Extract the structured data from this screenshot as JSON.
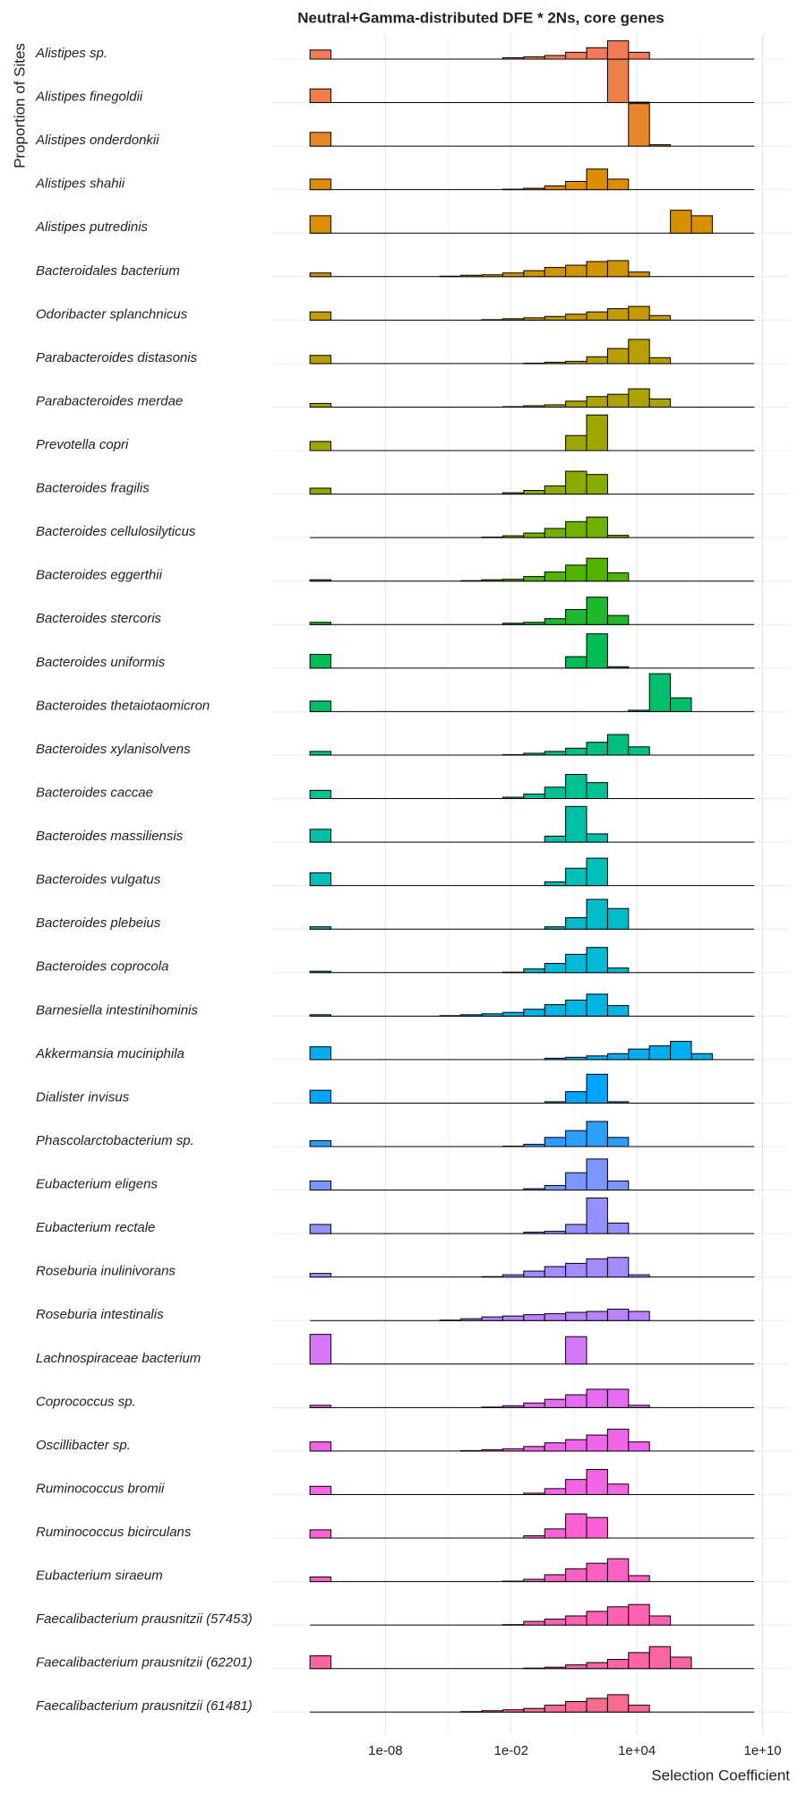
{
  "chart_data": {
    "type": "ridge_histogram",
    "title": "Neutral+Gamma-distributed DFE * 2Ns, core genes",
    "x_label": "Selection Coefficient",
    "y_label": "Proportion of Sites",
    "xlim": [
      -13.4,
      11.3
    ],
    "xticks": [
      {
        "value": -8,
        "label": "1e-08"
      },
      {
        "value": -2,
        "label": "1e-02"
      },
      {
        "value": 4,
        "label": "1e+04"
      },
      {
        "value": 10,
        "label": "1e+10"
      }
    ],
    "x_minor_grid": [
      -5,
      1,
      7
    ],
    "grid": true,
    "row_ylim": [
      0,
      1
    ],
    "neutral_bin": [
      -11.6,
      -10.6
    ],
    "bins": [
      -5.4,
      -4.4,
      -3.4,
      -2.4,
      -1.4,
      -0.4,
      0.6,
      1.6,
      2.6,
      3.6,
      4.6,
      5.6,
      6.6,
      7.6,
      8.6,
      9.6
    ],
    "series": [
      {
        "name": "Alistipes sp.",
        "color": "#F37B59",
        "neutral": 0.2,
        "values": [
          0,
          0,
          0,
          0.03,
          0.05,
          0.08,
          0.15,
          0.25,
          0.4,
          0.15,
          0,
          0,
          0,
          0,
          0
        ]
      },
      {
        "name": "Alistipes finegoldii",
        "color": "#EE7F4A",
        "neutral": 0.3,
        "values": [
          0,
          0,
          0,
          0,
          0,
          0,
          0,
          0,
          0.95,
          0.01,
          0,
          0,
          0,
          0,
          0
        ]
      },
      {
        "name": "Alistipes onderdonkii",
        "color": "#E8862C",
        "neutral": 0.3,
        "values": [
          0,
          0,
          0,
          0,
          0,
          0,
          0,
          0,
          0,
          0.93,
          0.03,
          0,
          0,
          0,
          0
        ]
      },
      {
        "name": "Alistipes shahii",
        "color": "#DE8C00",
        "neutral": 0.23,
        "values": [
          0,
          0,
          0,
          0.01,
          0.03,
          0.08,
          0.18,
          0.45,
          0.23,
          0,
          0,
          0,
          0,
          0,
          0
        ]
      },
      {
        "name": "Alistipes putredinis",
        "color": "#D89000",
        "neutral": 0.38,
        "values": [
          0,
          0,
          0,
          0,
          0,
          0,
          0,
          0,
          0,
          0,
          0,
          0.5,
          0.38,
          0,
          0
        ]
      },
      {
        "name": "Bacteroidales bacterium",
        "color": "#CF9400",
        "neutral": 0.08,
        "values": [
          0.01,
          0.03,
          0.04,
          0.08,
          0.13,
          0.2,
          0.25,
          0.33,
          0.35,
          0.1,
          0,
          0,
          0,
          0,
          0
        ]
      },
      {
        "name": "Odoribacter splanchnicus",
        "color": "#C49A00",
        "neutral": 0.18,
        "values": [
          0,
          0,
          0.01,
          0.03,
          0.05,
          0.08,
          0.13,
          0.18,
          0.25,
          0.3,
          0.1,
          0,
          0,
          0,
          0
        ]
      },
      {
        "name": "Parabacteroides distasonis",
        "color": "#B79F00",
        "neutral": 0.18,
        "values": [
          0,
          0,
          0,
          0,
          0.01,
          0.03,
          0.05,
          0.15,
          0.33,
          0.53,
          0.13,
          0,
          0,
          0,
          0
        ]
      },
      {
        "name": "Parabacteroides merdae",
        "color": "#ABA300",
        "neutral": 0.08,
        "values": [
          0,
          0,
          0,
          0.01,
          0.03,
          0.05,
          0.13,
          0.23,
          0.28,
          0.4,
          0.18,
          0,
          0,
          0,
          0
        ]
      },
      {
        "name": "Prevotella copri",
        "color": "#9DA700",
        "neutral": 0.2,
        "values": [
          0,
          0,
          0,
          0,
          0,
          0,
          0.33,
          0.78,
          0,
          0,
          0,
          0,
          0,
          0,
          0
        ]
      },
      {
        "name": "Bacteroides fragilis",
        "color": "#8AAB00",
        "neutral": 0.13,
        "values": [
          0,
          0,
          0,
          0.03,
          0.08,
          0.18,
          0.5,
          0.43,
          0,
          0,
          0,
          0,
          0,
          0,
          0
        ]
      },
      {
        "name": "Bacteroides cellulosilyticus",
        "color": "#72B000",
        "neutral": 0,
        "values": [
          0,
          0,
          0.01,
          0.04,
          0.1,
          0.2,
          0.35,
          0.45,
          0.05,
          0,
          0,
          0,
          0,
          0,
          0
        ]
      },
      {
        "name": "Bacteroides eggerthii",
        "color": "#53B400",
        "neutral": 0.03,
        "values": [
          0,
          0.01,
          0.03,
          0.04,
          0.1,
          0.2,
          0.35,
          0.5,
          0.18,
          0,
          0,
          0,
          0,
          0,
          0
        ]
      },
      {
        "name": "Bacteroides stercoris",
        "color": "#1FB82F",
        "neutral": 0.05,
        "values": [
          0,
          0,
          0,
          0.03,
          0.05,
          0.13,
          0.33,
          0.6,
          0.2,
          0,
          0,
          0,
          0,
          0,
          0
        ]
      },
      {
        "name": "Bacteroides uniformis",
        "color": "#00BC56",
        "neutral": 0.3,
        "values": [
          0,
          0,
          0,
          0,
          0,
          0,
          0.25,
          0.75,
          0.03,
          0,
          0,
          0,
          0,
          0,
          0
        ]
      },
      {
        "name": "Bacteroides thetaiotaomicron",
        "color": "#00BE6C",
        "neutral": 0.23,
        "values": [
          0,
          0,
          0,
          0,
          0,
          0,
          0,
          0,
          0,
          0.03,
          0.83,
          0.3,
          0,
          0,
          0
        ]
      },
      {
        "name": "Bacteroides xylanisolvens",
        "color": "#00C081",
        "neutral": 0.08,
        "values": [
          0,
          0,
          0,
          0.01,
          0.04,
          0.08,
          0.15,
          0.28,
          0.45,
          0.18,
          0,
          0,
          0,
          0,
          0
        ]
      },
      {
        "name": "Bacteroides caccae",
        "color": "#00C094",
        "neutral": 0.18,
        "values": [
          0,
          0,
          0,
          0.03,
          0.1,
          0.25,
          0.53,
          0.35,
          0,
          0,
          0,
          0,
          0,
          0,
          0
        ]
      },
      {
        "name": "Bacteroides massiliensis",
        "color": "#00C0A7",
        "neutral": 0.28,
        "values": [
          0,
          0,
          0,
          0,
          0,
          0.13,
          0.78,
          0.18,
          0,
          0,
          0,
          0,
          0,
          0,
          0
        ]
      },
      {
        "name": "Bacteroides vulgatus",
        "color": "#00BFB8",
        "neutral": 0.28,
        "values": [
          0,
          0,
          0,
          0,
          0,
          0.08,
          0.38,
          0.6,
          0,
          0,
          0,
          0,
          0,
          0,
          0
        ]
      },
      {
        "name": "Bacteroides plebeius",
        "color": "#00BCC8",
        "neutral": 0.05,
        "values": [
          0,
          0,
          0,
          0,
          0,
          0.05,
          0.25,
          0.65,
          0.45,
          0,
          0,
          0,
          0,
          0,
          0
        ]
      },
      {
        "name": "Bacteroides coprocola",
        "color": "#00B9D6",
        "neutral": 0.03,
        "values": [
          0,
          0,
          0,
          0.01,
          0.08,
          0.2,
          0.4,
          0.55,
          0.1,
          0,
          0,
          0,
          0,
          0,
          0
        ]
      },
      {
        "name": "Barnesiella intestinihominis",
        "color": "#00B4E4",
        "neutral": 0.03,
        "values": [
          0.01,
          0.03,
          0.05,
          0.08,
          0.15,
          0.25,
          0.35,
          0.48,
          0.23,
          0,
          0,
          0,
          0,
          0,
          0
        ]
      },
      {
        "name": "Akkermansia muciniphila",
        "color": "#00ADEF",
        "neutral": 0.28,
        "values": [
          0,
          0,
          0,
          0,
          0,
          0.03,
          0.05,
          0.08,
          0.13,
          0.23,
          0.3,
          0.4,
          0.13,
          0,
          0
        ]
      },
      {
        "name": "Dialister invisus",
        "color": "#00A5FF",
        "neutral": 0.28,
        "values": [
          0,
          0,
          0,
          0,
          0,
          0.03,
          0.25,
          0.63,
          0.03,
          0,
          0,
          0,
          0,
          0,
          0
        ]
      },
      {
        "name": "Phascolarctobacterium sp.",
        "color": "#2C9EFF",
        "neutral": 0.13,
        "values": [
          0,
          0,
          0,
          0.01,
          0.05,
          0.2,
          0.35,
          0.55,
          0.2,
          0,
          0,
          0,
          0,
          0,
          0
        ]
      },
      {
        "name": "Eubacterium eligens",
        "color": "#7C96FF",
        "neutral": 0.2,
        "values": [
          0,
          0,
          0,
          0,
          0.03,
          0.1,
          0.38,
          0.68,
          0.2,
          0,
          0,
          0,
          0,
          0,
          0
        ]
      },
      {
        "name": "Eubacterium rectale",
        "color": "#9590FF",
        "neutral": 0.2,
        "values": [
          0,
          0,
          0,
          0,
          0.03,
          0.05,
          0.2,
          0.78,
          0.23,
          0,
          0,
          0,
          0,
          0,
          0
        ]
      },
      {
        "name": "Roseburia inulinivorans",
        "color": "#A58AFF",
        "neutral": 0.08,
        "values": [
          0,
          0,
          0.01,
          0.05,
          0.13,
          0.23,
          0.3,
          0.4,
          0.43,
          0.05,
          0,
          0,
          0,
          0,
          0
        ]
      },
      {
        "name": "Roseburia intestinalis",
        "color": "#B983FF",
        "neutral": 0,
        "values": [
          0.01,
          0.04,
          0.08,
          0.1,
          0.13,
          0.15,
          0.18,
          0.2,
          0.25,
          0.2,
          0,
          0,
          0,
          0,
          0
        ]
      },
      {
        "name": "Lachnospiraceae bacterium",
        "color": "#D677F9",
        "neutral": 0.65,
        "values": [
          0,
          0,
          0,
          0,
          0,
          0,
          0.6,
          0,
          0,
          0,
          0,
          0,
          0,
          0,
          0
        ]
      },
      {
        "name": "Coprococcus sp.",
        "color": "#E56BF0",
        "neutral": 0.05,
        "values": [
          0,
          0,
          0.01,
          0.04,
          0.1,
          0.18,
          0.28,
          0.4,
          0.4,
          0.05,
          0,
          0,
          0,
          0,
          0
        ]
      },
      {
        "name": "Oscillibacter sp.",
        "color": "#F066EA",
        "neutral": 0.2,
        "values": [
          0,
          0.01,
          0.03,
          0.05,
          0.1,
          0.18,
          0.25,
          0.35,
          0.48,
          0.2,
          0,
          0,
          0,
          0,
          0
        ]
      },
      {
        "name": "Ruminococcus bromii",
        "color": "#F564E3",
        "neutral": 0.18,
        "values": [
          0,
          0,
          0,
          0,
          0.03,
          0.13,
          0.33,
          0.55,
          0.23,
          0,
          0,
          0,
          0,
          0,
          0
        ]
      },
      {
        "name": "Ruminococcus bicirculans",
        "color": "#FA62D3",
        "neutral": 0.18,
        "values": [
          0,
          0,
          0,
          0,
          0.05,
          0.2,
          0.53,
          0.45,
          0,
          0,
          0,
          0,
          0,
          0,
          0
        ]
      },
      {
        "name": "Eubacterium siraeum",
        "color": "#FD61C4",
        "neutral": 0.1,
        "values": [
          0,
          0,
          0,
          0.01,
          0.05,
          0.15,
          0.28,
          0.4,
          0.5,
          0.13,
          0,
          0,
          0,
          0,
          0
        ]
      },
      {
        "name": "Faecalibacterium prausnitzii (57453)",
        "color": "#FF62B3",
        "neutral": 0,
        "values": [
          0,
          0,
          0,
          0.01,
          0.08,
          0.13,
          0.2,
          0.3,
          0.4,
          0.45,
          0.2,
          0,
          0,
          0,
          0
        ]
      },
      {
        "name": "Faecalibacterium prausnitzii (62201)",
        "color": "#FF65A3",
        "neutral": 0.28,
        "values": [
          0,
          0,
          0,
          0,
          0.01,
          0.03,
          0.08,
          0.13,
          0.2,
          0.35,
          0.48,
          0.25,
          0,
          0,
          0
        ]
      },
      {
        "name": "Faecalibacterium prausnitzii (61481)",
        "color": "#FB6A8F",
        "neutral": 0,
        "values": [
          0,
          0.01,
          0.03,
          0.05,
          0.08,
          0.15,
          0.23,
          0.3,
          0.38,
          0.15,
          0,
          0,
          0,
          0,
          0
        ]
      }
    ]
  }
}
